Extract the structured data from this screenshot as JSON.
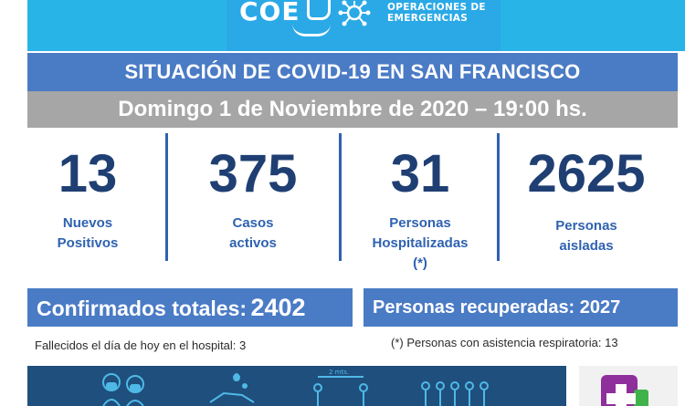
{
  "header": {
    "logo_main": "COE",
    "logo_line1": "OPERACIONES DE",
    "logo_line2": "EMERGENCIAS"
  },
  "title": "SITUACIÓN DE COVID-19 EN SAN FRANCISCO",
  "date": "Domingo 1 de Noviembre de 2020 – 19:00 hs.",
  "stats": [
    {
      "value": "13",
      "label_line1": "Nuevos",
      "label_line2": "Positivos",
      "label_line3": ""
    },
    {
      "value": "375",
      "label_line1": "Casos",
      "label_line2": "activos",
      "label_line3": ""
    },
    {
      "value": "31",
      "label_line1": "Personas",
      "label_line2": "Hospitalizadas",
      "label_line3": "(*)"
    },
    {
      "value": "2625",
      "label_line1": "Personas",
      "label_line2": "aisladas",
      "label_line3": ""
    }
  ],
  "totals": {
    "confirmed_label": "Confirmados totales:",
    "confirmed_value": "2402",
    "recovered_label": "Personas recuperadas:",
    "recovered_value": "2027"
  },
  "notes": {
    "deaths": "Fallecidos el día de hoy en el hospital: 3",
    "respiratory": "(*) Personas con asistencia respiratoria: 13"
  },
  "footer": {
    "distance_label": "2 mts.",
    "icons": [
      "masked-people-icon",
      "handwashing-icon",
      "social-distance-icon",
      "people-group-icon",
      "health-cross-logo-icon"
    ]
  },
  "colors": {
    "header_blue": "#29b4e8",
    "bar_blue": "#4a7bc5",
    "date_gray": "#a6a6a6",
    "number_navy": "#1f3f73",
    "label_blue": "#2f62b0",
    "footer_navy": "#1f4f7d"
  }
}
